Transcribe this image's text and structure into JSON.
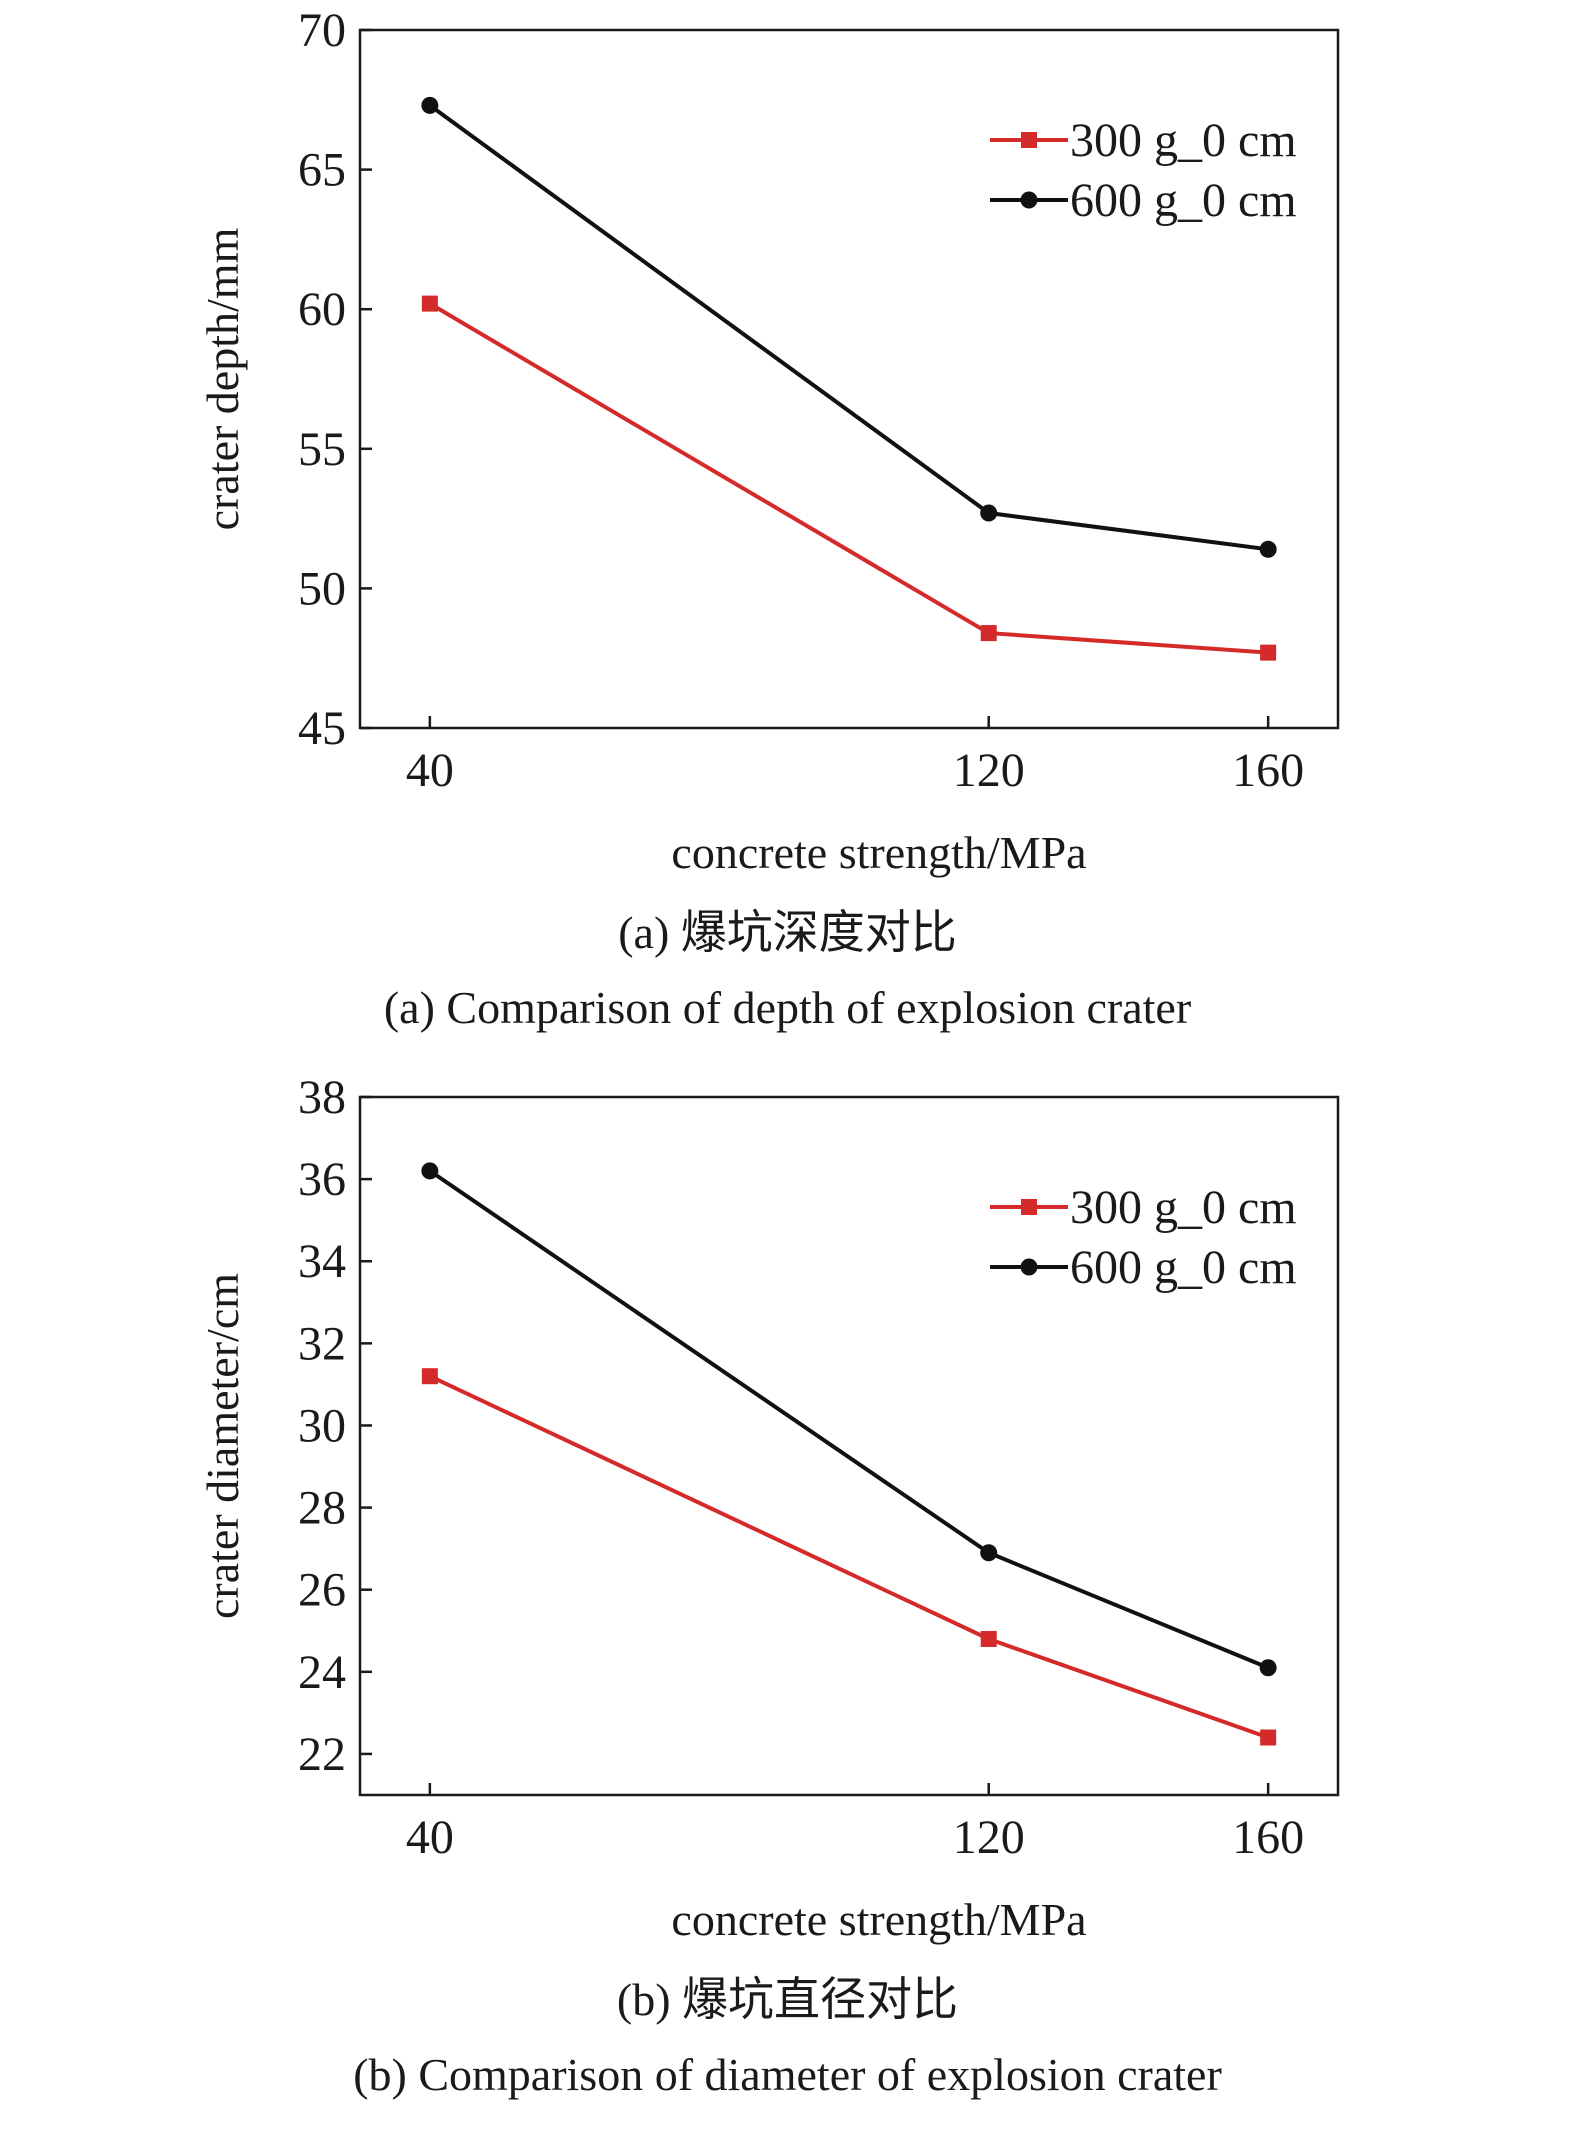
{
  "colors": {
    "series_300g": "#d42a2a",
    "series_600g": "#111111",
    "axes": "#1a1a1a"
  },
  "figures": [
    {
      "caption_cn": "(a) 爆坑深度对比",
      "caption_en": "(a) Comparison of depth of explosion crater"
    },
    {
      "caption_cn": "(b) 爆坑直径对比",
      "caption_en": "(b) Comparison of diameter of explosion crater"
    }
  ],
  "chart_data": [
    {
      "type": "line",
      "xlabel": "concrete strength/MPa",
      "ylabel": "crater depth/mm",
      "x": [
        40,
        120,
        160
      ],
      "x_ticks": [
        "40",
        "120",
        "160"
      ],
      "xlim": [
        30,
        170
      ],
      "ylim": [
        45,
        70
      ],
      "y_ticks": [
        "45",
        "50",
        "55",
        "60",
        "65",
        "70"
      ],
      "grid": false,
      "legend_position": "top-right",
      "series": [
        {
          "name": "300 g_0 cm",
          "marker": "square",
          "color": "#d42a2a",
          "values": [
            60.2,
            48.4,
            47.7
          ]
        },
        {
          "name": "600 g_0 cm",
          "marker": "circle",
          "color": "#111111",
          "values": [
            67.3,
            52.7,
            51.4
          ]
        }
      ]
    },
    {
      "type": "line",
      "xlabel": "concrete strength/MPa",
      "ylabel": "crater diameter/cm",
      "x": [
        40,
        120,
        160
      ],
      "x_ticks": [
        "40",
        "120",
        "160"
      ],
      "xlim": [
        30,
        170
      ],
      "ylim": [
        21,
        38
      ],
      "y_ticks": [
        "22",
        "24",
        "26",
        "28",
        "30",
        "32",
        "34",
        "36",
        "38"
      ],
      "grid": false,
      "legend_position": "top-right",
      "series": [
        {
          "name": "300 g_0 cm",
          "marker": "square",
          "color": "#d42a2a",
          "values": [
            31.2,
            24.8,
            22.4
          ]
        },
        {
          "name": "600 g_0 cm",
          "marker": "circle",
          "color": "#111111",
          "values": [
            36.2,
            26.9,
            24.1
          ]
        }
      ]
    }
  ]
}
